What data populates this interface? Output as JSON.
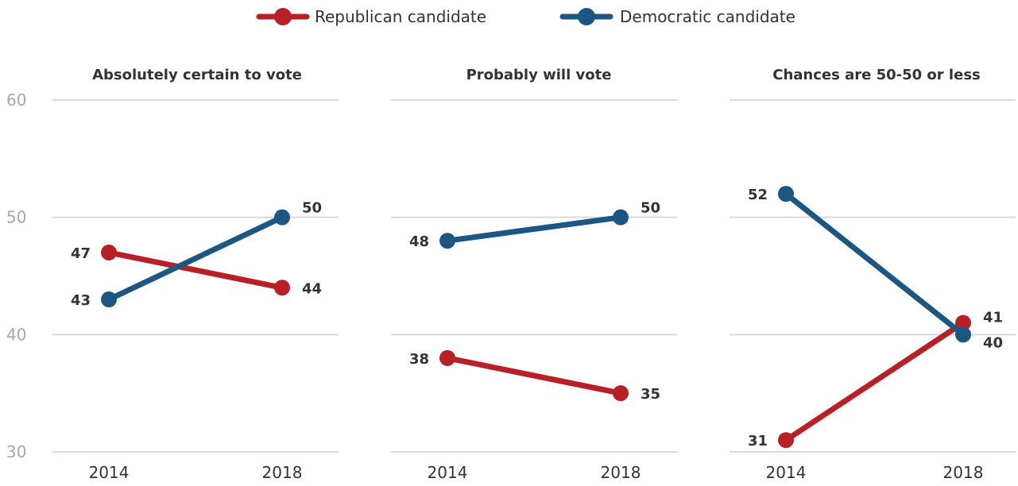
{
  "colors": {
    "republican": "#b82025",
    "democratic": "#1c5683",
    "grid": "#d9d9d9",
    "ytick": "#a7a7a7",
    "text": "#333333"
  },
  "legend": [
    {
      "label": "Republican candidate",
      "color": "#b82025"
    },
    {
      "label": "Democratic candidate",
      "color": "#1c5683"
    }
  ],
  "chart_data": {
    "type": "line",
    "y_ticks": [
      30,
      40,
      50,
      60
    ],
    "ylim": [
      30,
      60
    ],
    "grid": true,
    "legend_position": "top-center",
    "panels": [
      {
        "title": "Absolutely certain to vote",
        "categories": [
          "2014",
          "2018"
        ],
        "series": [
          {
            "name": "Republican candidate",
            "values": [
              47,
              44
            ]
          },
          {
            "name": "Democratic candidate",
            "values": [
              43,
              50
            ]
          }
        ]
      },
      {
        "title": "Probably will vote",
        "categories": [
          "2014",
          "2018"
        ],
        "series": [
          {
            "name": "Republican candidate",
            "values": [
              38,
              35
            ]
          },
          {
            "name": "Democratic candidate",
            "values": [
              48,
              50
            ]
          }
        ]
      },
      {
        "title": "Chances are 50-50 or less",
        "categories": [
          "2014",
          "2018"
        ],
        "series": [
          {
            "name": "Republican candidate",
            "values": [
              31,
              41
            ]
          },
          {
            "name": "Democratic candidate",
            "values": [
              52,
              40
            ]
          }
        ]
      }
    ]
  }
}
